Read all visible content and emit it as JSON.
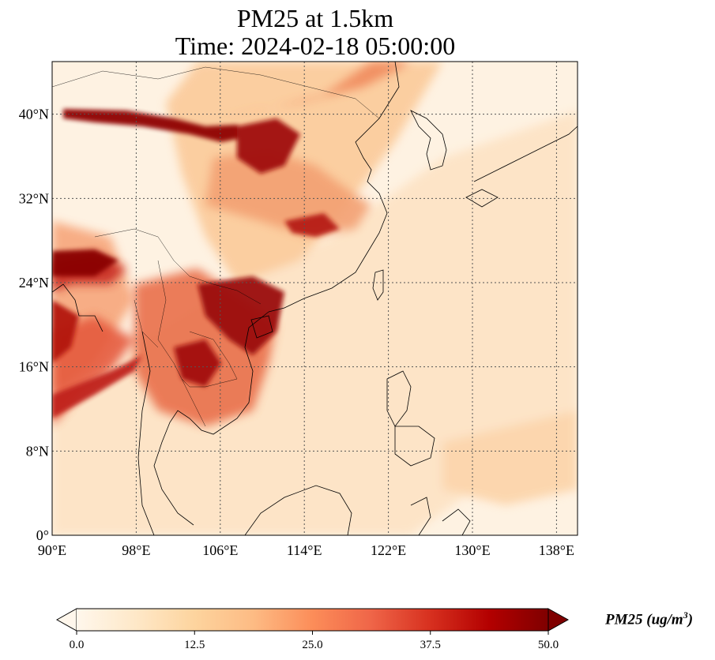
{
  "title": {
    "line1": "PM25 at 1.5km",
    "line2": "Time: 2024-02-18 05:00:00"
  },
  "map": {
    "extent": {
      "lon_min": 90,
      "lon_max": 140,
      "lat_min": 0,
      "lat_max": 45
    },
    "lon_ticks": [
      {
        "value": 90,
        "label": "90°E"
      },
      {
        "value": 98,
        "label": "98°E"
      },
      {
        "value": 106,
        "label": "106°E"
      },
      {
        "value": 114,
        "label": "114°E"
      },
      {
        "value": 122,
        "label": "122°E"
      },
      {
        "value": 130,
        "label": "130°E"
      },
      {
        "value": 138,
        "label": "138°E"
      }
    ],
    "lat_ticks": [
      {
        "value": 0,
        "label": "0°"
      },
      {
        "value": 8,
        "label": "8°N"
      },
      {
        "value": 16,
        "label": "16°N"
      },
      {
        "value": 24,
        "label": "24°N"
      },
      {
        "value": 32,
        "label": "32°N"
      },
      {
        "value": 40,
        "label": "40°N"
      }
    ],
    "gridlines": true,
    "colormap": "OrRd"
  },
  "colorbar": {
    "min": 0.0,
    "max": 50.0,
    "ticks": [
      "0.0",
      "12.5",
      "25.0",
      "37.5",
      "50.0"
    ],
    "label": "PM25 (ug/m",
    "label_sup": "3",
    "label_close": ")",
    "extend": "both",
    "colors": [
      "#fff7ec",
      "#fee8c8",
      "#fdd49e",
      "#fdbb84",
      "#fc8d59",
      "#ef6548",
      "#d7301f",
      "#b30000",
      "#7f0000"
    ]
  }
}
